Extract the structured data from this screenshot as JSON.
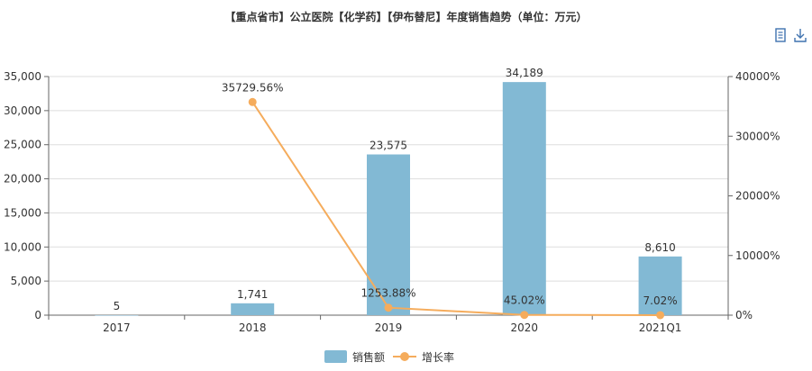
{
  "chart_data": {
    "type": "bar",
    "title": "【重点省市】公立医院【化学药】【伊布替尼】年度销售趋势（单位：万元）",
    "categories": [
      "2017",
      "2018",
      "2019",
      "2020",
      "2021Q1"
    ],
    "series": [
      {
        "name": "销售额",
        "type": "bar",
        "axis": "left",
        "values": [
          5,
          1741,
          23575,
          34189,
          8610
        ],
        "labels": [
          "5",
          "1,741",
          "23,575",
          "34,189",
          "8,610"
        ]
      },
      {
        "name": "增长率",
        "type": "line",
        "axis": "right",
        "values": [
          null,
          35729.56,
          1253.88,
          45.02,
          7.02
        ],
        "labels": [
          "",
          "35729.56%",
          "1253.88%",
          "45.02%",
          "7.02%"
        ]
      }
    ],
    "y_left": {
      "min": 0,
      "max": 35000,
      "ticks": [
        "0",
        "5,000",
        "10,000",
        "15,000",
        "20,000",
        "25,000",
        "30,000",
        "35,000"
      ]
    },
    "y_right": {
      "min": 0,
      "max": 40000,
      "ticks": [
        "0%",
        "10000%",
        "20000%",
        "30000%",
        "40000%"
      ]
    },
    "legend_position": "bottom-center",
    "grid": true
  },
  "colors": {
    "bar": "#82b9d4",
    "line": "#f5ac5c",
    "axis": "#666666",
    "grid": "#dddddd",
    "tool": "#3f72af"
  },
  "toolbar": {
    "view_icon": "data-view-icon",
    "save_icon": "download-icon"
  }
}
